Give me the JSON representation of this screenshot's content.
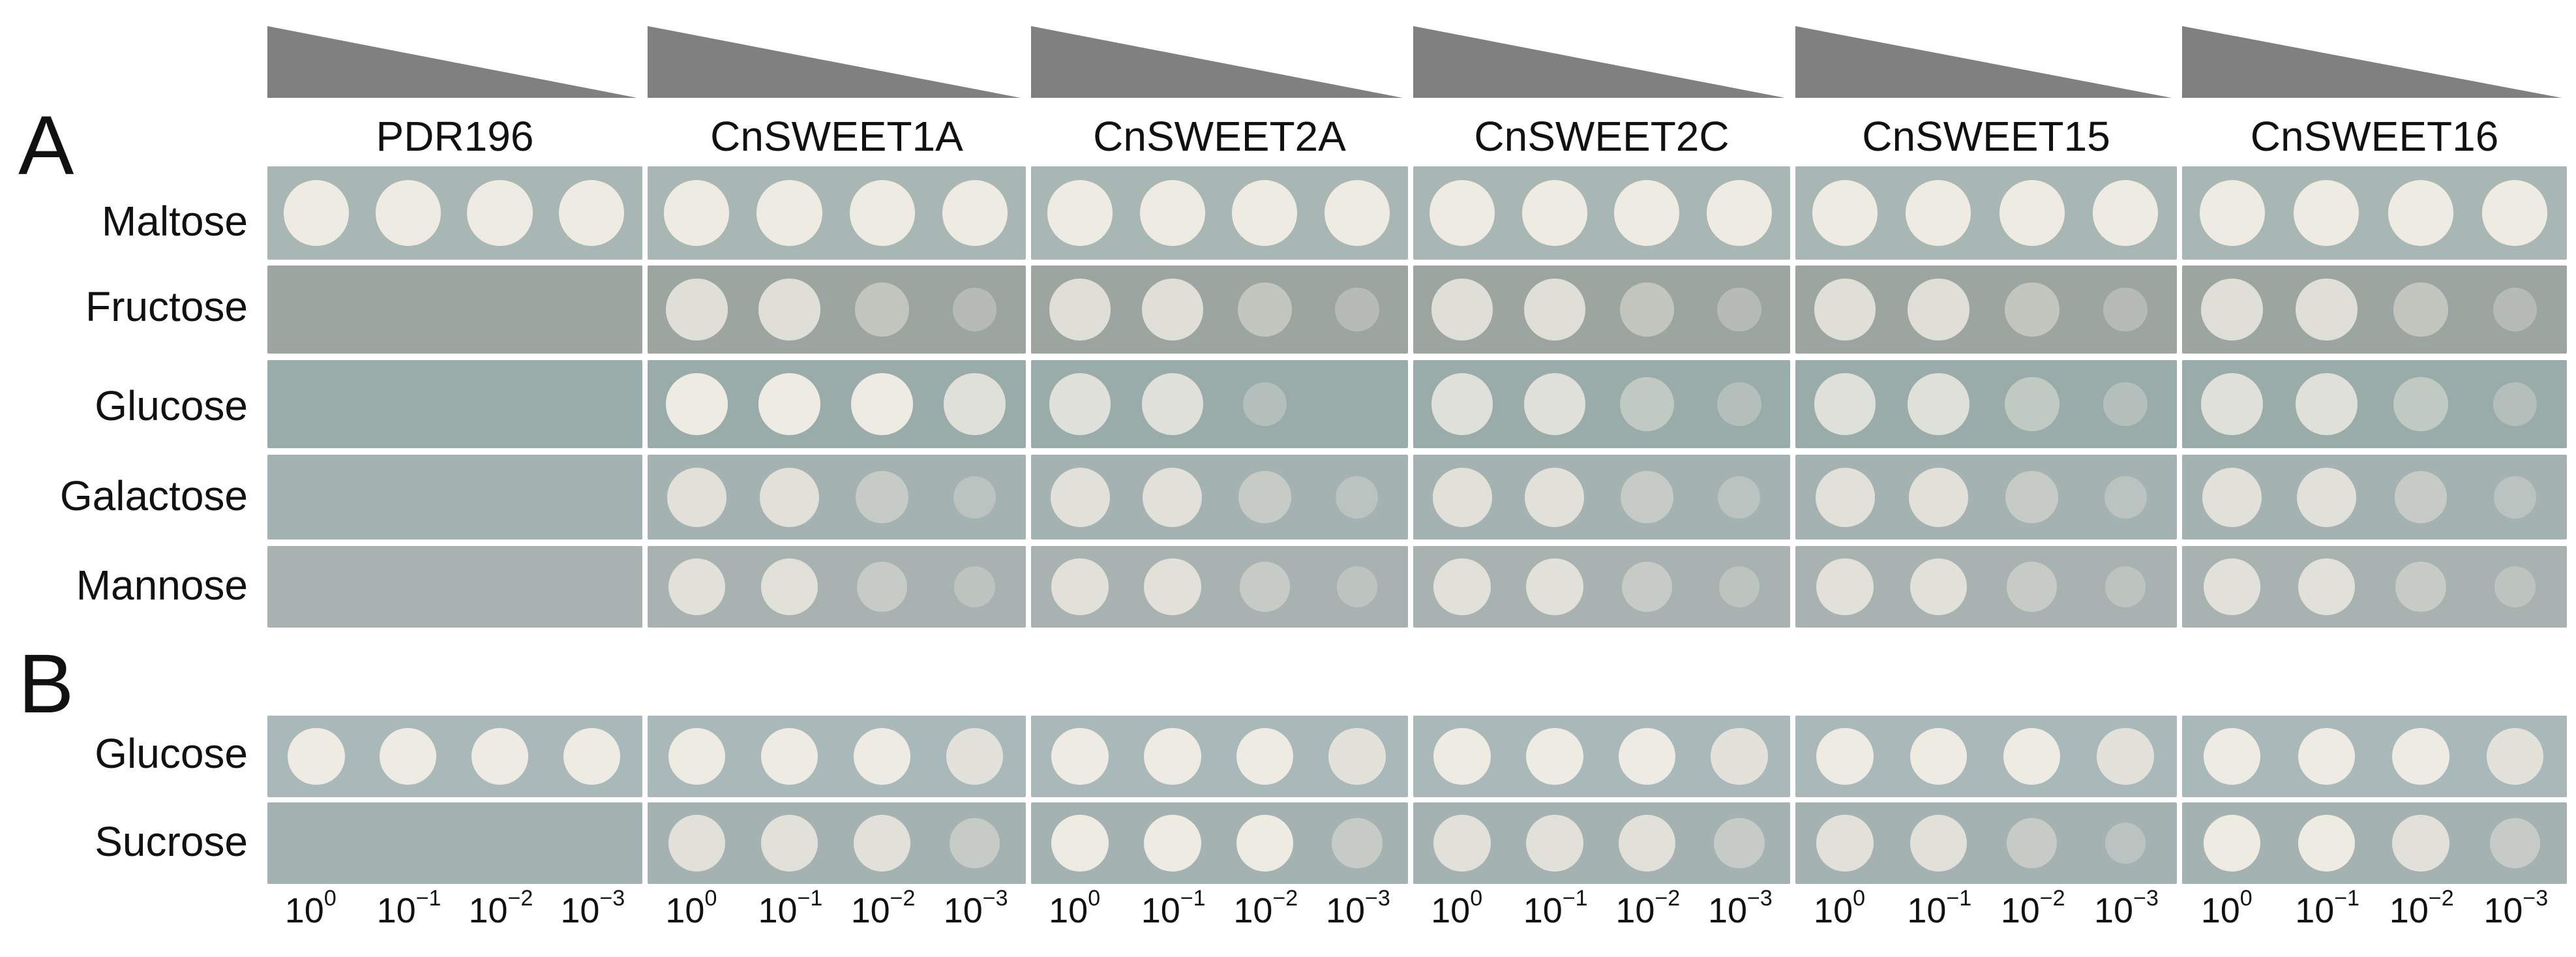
{
  "panels": [
    "A",
    "B"
  ],
  "strains": [
    "PDR196",
    "CnSWEET1A",
    "CnSWEET2A",
    "CnSWEET2C",
    "CnSWEET15",
    "CnSWEET16"
  ],
  "rows_a": [
    "Maltose",
    "Fructose",
    "Glucose",
    "Galactose",
    "Mannose"
  ],
  "rows_b": [
    "Glucose",
    "Sucrose"
  ],
  "dilutions": [
    {
      "base": "10",
      "exp": "0"
    },
    {
      "base": "10",
      "exp": "−1"
    },
    {
      "base": "10",
      "exp": "−2"
    },
    {
      "base": "10",
      "exp": "−3"
    }
  ],
  "growth_a": [
    [
      [
        4,
        4,
        4,
        4
      ],
      [
        0,
        0,
        0,
        0
      ],
      [
        0,
        0,
        0,
        0
      ],
      [
        0,
        0,
        0,
        0
      ],
      [
        0,
        0,
        0,
        0
      ]
    ],
    [
      [
        4,
        4,
        4,
        4
      ],
      [
        3,
        3,
        2,
        1
      ],
      [
        4,
        4,
        4,
        3
      ],
      [
        3,
        3,
        2,
        1
      ],
      [
        3,
        3,
        2,
        1
      ]
    ],
    [
      [
        4,
        4,
        4,
        4
      ],
      [
        3,
        3,
        2,
        1
      ],
      [
        3,
        3,
        1,
        0
      ],
      [
        3,
        3,
        2,
        1
      ],
      [
        3,
        3,
        2,
        1
      ]
    ],
    [
      [
        4,
        4,
        4,
        4
      ],
      [
        3,
        3,
        2,
        1
      ],
      [
        3,
        3,
        2,
        1
      ],
      [
        3,
        3,
        2,
        1
      ],
      [
        3,
        3,
        2,
        1
      ]
    ],
    [
      [
        4,
        4,
        4,
        4
      ],
      [
        3,
        3,
        2,
        1
      ],
      [
        3,
        3,
        2,
        1
      ],
      [
        3,
        3,
        2,
        1
      ],
      [
        3,
        3,
        2,
        1
      ]
    ],
    [
      [
        4,
        4,
        4,
        4
      ],
      [
        3,
        3,
        2,
        1
      ],
      [
        3,
        3,
        2,
        1
      ],
      [
        3,
        3,
        2,
        1
      ],
      [
        3,
        3,
        2,
        1
      ]
    ]
  ],
  "growth_b": [
    [
      [
        4,
        4,
        4,
        4
      ],
      [
        0,
        0,
        0,
        0
      ]
    ],
    [
      [
        4,
        4,
        4,
        3
      ],
      [
        3,
        3,
        3,
        2
      ]
    ],
    [
      [
        4,
        4,
        4,
        3
      ],
      [
        4,
        4,
        4,
        2
      ]
    ],
    [
      [
        4,
        4,
        4,
        3
      ],
      [
        3,
        3,
        3,
        2
      ]
    ],
    [
      [
        4,
        4,
        4,
        3
      ],
      [
        3,
        3,
        2,
        1
      ]
    ],
    [
      [
        4,
        4,
        4,
        3
      ],
      [
        4,
        4,
        3,
        2
      ]
    ]
  ],
  "colors": {
    "wedge": "#808080",
    "plate_a": [
      "#a9b7b4",
      "#9da5a0",
      "#9aacaa",
      "#a5b2b2",
      "#a8b2b0"
    ],
    "plate_b": [
      "#a9b8b8",
      "#a5b2b2"
    ],
    "colony": "#eeebe3",
    "colony_sparse": "#dcdcd4"
  }
}
